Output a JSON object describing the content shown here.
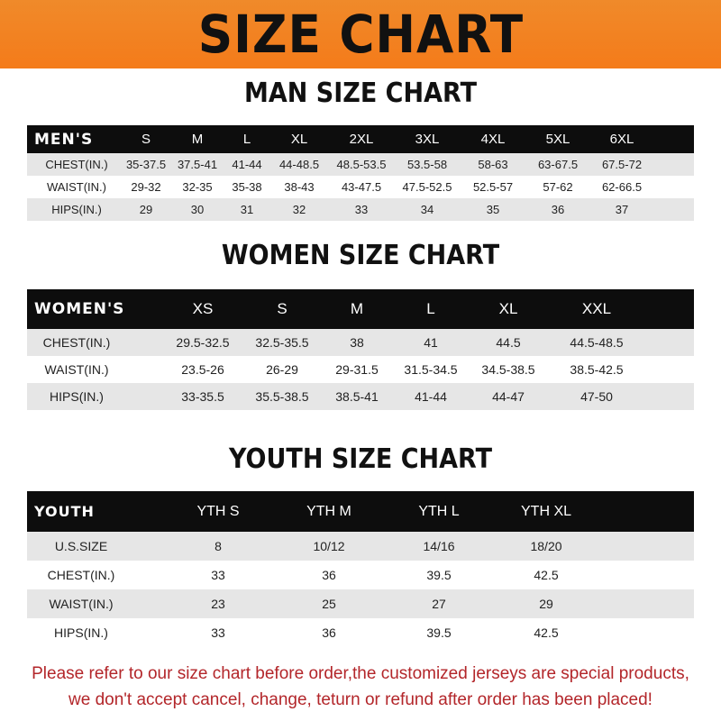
{
  "title": "SIZE CHART",
  "men": {
    "title": "MAN SIZE CHART",
    "header": "MEN'S",
    "sizes": [
      "S",
      "M",
      "L",
      "XL",
      "2XL",
      "3XL",
      "4XL",
      "5XL",
      "6XL"
    ],
    "rows": [
      {
        "label": "CHEST(IN.)",
        "values": [
          "35-37.5",
          "37.5-41",
          "41-44",
          "44-48.5",
          "48.5-53.5",
          "53.5-58",
          "58-63",
          "63-67.5",
          "67.5-72"
        ]
      },
      {
        "label": "WAIST(IN.)",
        "values": [
          "29-32",
          "32-35",
          "35-38",
          "38-43",
          "43-47.5",
          "47.5-52.5",
          "52.5-57",
          "57-62",
          "62-66.5"
        ]
      },
      {
        "label": "HIPS(IN.)",
        "values": [
          "29",
          "30",
          "31",
          "32",
          "33",
          "34",
          "35",
          "36",
          "37"
        ]
      }
    ]
  },
  "women": {
    "title": "WOMEN SIZE CHART",
    "header": "WOMEN'S",
    "sizes": [
      "XS",
      "S",
      "M",
      "L",
      "XL",
      "XXL"
    ],
    "rows": [
      {
        "label": "CHEST(IN.)",
        "values": [
          "29.5-32.5",
          "32.5-35.5",
          "38",
          "41",
          "44.5",
          "44.5-48.5"
        ]
      },
      {
        "label": "WAIST(IN.)",
        "values": [
          "23.5-26",
          "26-29",
          "29-31.5",
          "31.5-34.5",
          "34.5-38.5",
          "38.5-42.5"
        ]
      },
      {
        "label": "HIPS(IN.)",
        "values": [
          "33-35.5",
          "35.5-38.5",
          "38.5-41",
          "41-44",
          "44-47",
          "47-50"
        ]
      }
    ]
  },
  "youth": {
    "title": "YOUTH SIZE CHART",
    "header": "YOUTH",
    "sizes": [
      "YTH S",
      "YTH M",
      "YTH L",
      "YTH XL"
    ],
    "rows": [
      {
        "label": "U.S.SIZE",
        "values": [
          "8",
          "10/12",
          "14/16",
          "18/20"
        ]
      },
      {
        "label": "CHEST(IN.)",
        "values": [
          "33",
          "36",
          "39.5",
          "42.5"
        ]
      },
      {
        "label": "WAIST(IN.)",
        "values": [
          "23",
          "25",
          "27",
          "29"
        ]
      },
      {
        "label": "HIPS(IN.)",
        "values": [
          "33",
          "36",
          "39.5",
          "42.5"
        ]
      }
    ]
  },
  "notice": [
    "Please refer to our size chart before order,the customized jerseys are special products,",
    "we don't accept cancel, change, teturn or refund after order has been placed!"
  ],
  "colors": {
    "banner": "#f47b1a",
    "header_row": "#0d0d0d",
    "stripe": "#e6e6e6",
    "notice": "#b3262a"
  }
}
